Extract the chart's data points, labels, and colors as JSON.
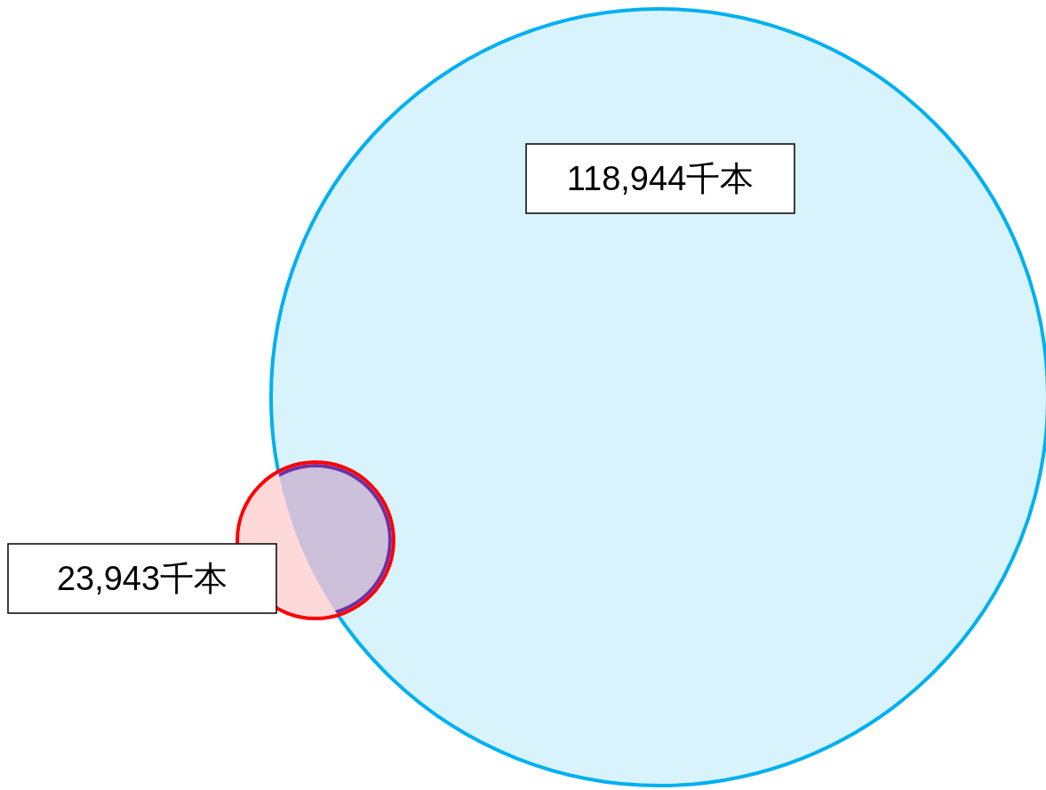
{
  "chart_data": {
    "type": "other",
    "categories": [
      null,
      null
    ],
    "values": [
      118944,
      23943
    ],
    "value_labels": [
      "118,944千本",
      "23,943千本"
    ],
    "colors": [
      "#00b0f0",
      "#ff0000"
    ]
  }
}
